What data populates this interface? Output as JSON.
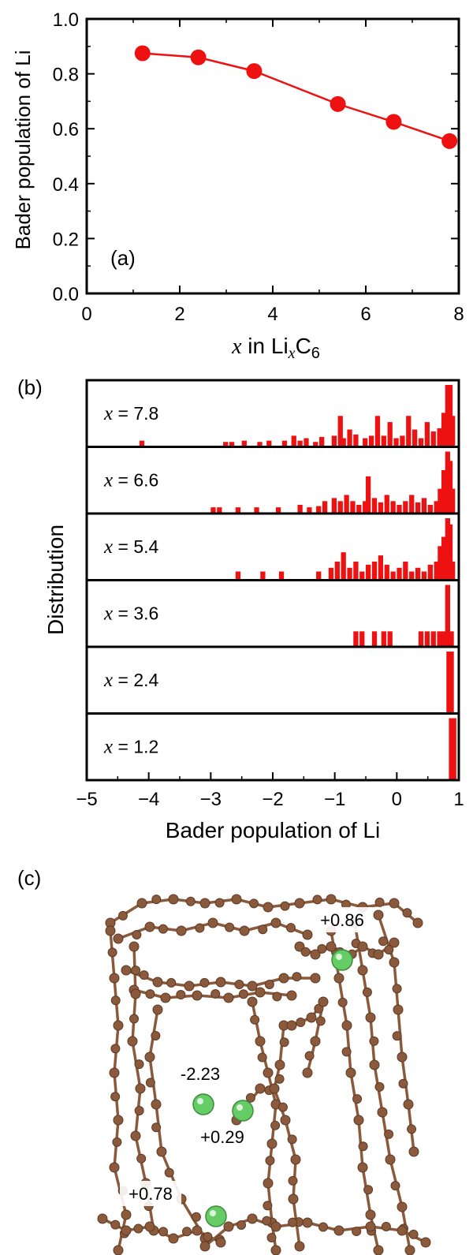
{
  "panels": {
    "a_label": "(a)",
    "b_label": "(b)",
    "c_label": "(c)"
  },
  "chart_data": [
    {
      "type": "line",
      "panel": "(a)",
      "ylabel": "Bader population of Li",
      "xlabel_var": "x",
      "xlabel_mid": " in Li",
      "xlabel_sub_var": "x",
      "xlabel_tail": "C",
      "xlabel_tail_sub": "6",
      "xlim": [
        0,
        8
      ],
      "ylim": [
        0,
        1.0
      ],
      "xticks": [
        "0",
        "2",
        "4",
        "6",
        "8"
      ],
      "yticks": [
        "0.0",
        "0.2",
        "0.4",
        "0.6",
        "0.8",
        "1.0"
      ],
      "x": [
        1.2,
        2.4,
        3.6,
        5.4,
        6.6,
        7.8
      ],
      "y": [
        0.875,
        0.86,
        0.81,
        0.69,
        0.625,
        0.555
      ],
      "color": "#ee1111"
    },
    {
      "type": "bar",
      "panel": "(b)",
      "ylabel": "Distribution",
      "xlabel": "Bader population of Li",
      "xlim": [
        -5,
        1
      ],
      "xticks": [
        "−5",
        "−4",
        "−3",
        "−2",
        "−1",
        "0",
        "1"
      ],
      "color": "#ee1111",
      "series": [
        {
          "label": "x = 7.8",
          "bins": [
            [
              -4.15,
              0.1
            ],
            [
              -2.8,
              0.08
            ],
            [
              -2.7,
              0.08
            ],
            [
              -2.5,
              0.1
            ],
            [
              -2.25,
              0.08
            ],
            [
              -2.1,
              0.1
            ],
            [
              -1.85,
              0.1
            ],
            [
              -1.7,
              0.18
            ],
            [
              -1.6,
              0.1
            ],
            [
              -1.5,
              0.14
            ],
            [
              -1.35,
              0.08
            ],
            [
              -1.25,
              0.16
            ],
            [
              -1.05,
              0.18
            ],
            [
              -0.95,
              0.5
            ],
            [
              -0.9,
              0.14
            ],
            [
              -0.8,
              0.28
            ],
            [
              -0.7,
              0.2
            ],
            [
              -0.55,
              0.14
            ],
            [
              -0.45,
              0.18
            ],
            [
              -0.35,
              0.5
            ],
            [
              -0.25,
              0.18
            ],
            [
              -0.15,
              0.4
            ],
            [
              -0.05,
              0.14
            ],
            [
              0.05,
              0.18
            ],
            [
              0.15,
              0.5
            ],
            [
              0.25,
              0.28
            ],
            [
              0.35,
              0.14
            ],
            [
              0.45,
              0.4
            ],
            [
              0.55,
              0.25
            ],
            [
              0.65,
              0.3
            ],
            [
              0.72,
              0.55
            ],
            [
              0.78,
              1.0
            ],
            [
              0.82,
              1.0
            ],
            [
              0.86,
              0.5
            ]
          ]
        },
        {
          "label": "x = 6.6",
          "bins": [
            [
              -3.0,
              0.1
            ],
            [
              -2.9,
              0.1
            ],
            [
              -2.6,
              0.1
            ],
            [
              -2.3,
              0.1
            ],
            [
              -1.95,
              0.1
            ],
            [
              -1.6,
              0.14
            ],
            [
              -1.45,
              0.1
            ],
            [
              -1.3,
              0.12
            ],
            [
              -1.2,
              0.2
            ],
            [
              -1.05,
              0.25
            ],
            [
              -0.95,
              0.2
            ],
            [
              -0.85,
              0.3
            ],
            [
              -0.75,
              0.2
            ],
            [
              -0.65,
              0.14
            ],
            [
              -0.55,
              0.2
            ],
            [
              -0.5,
              0.6
            ],
            [
              -0.4,
              0.25
            ],
            [
              -0.3,
              0.18
            ],
            [
              -0.2,
              0.3
            ],
            [
              -0.1,
              0.2
            ],
            [
              0.0,
              0.14
            ],
            [
              0.1,
              0.2
            ],
            [
              0.2,
              0.3
            ],
            [
              0.3,
              0.18
            ],
            [
              0.4,
              0.25
            ],
            [
              0.5,
              0.14
            ],
            [
              0.6,
              0.2
            ],
            [
              0.66,
              0.4
            ],
            [
              0.72,
              0.7
            ],
            [
              0.78,
              1.0
            ],
            [
              0.82,
              0.85
            ],
            [
              0.86,
              0.4
            ]
          ]
        },
        {
          "label": "x = 5.4",
          "bins": [
            [
              -2.6,
              0.14
            ],
            [
              -2.2,
              0.14
            ],
            [
              -1.9,
              0.14
            ],
            [
              -1.3,
              0.14
            ],
            [
              -1.1,
              0.2
            ],
            [
              -1.0,
              0.3
            ],
            [
              -0.9,
              0.45
            ],
            [
              -0.8,
              0.2
            ],
            [
              -0.7,
              0.3
            ],
            [
              -0.6,
              0.14
            ],
            [
              -0.5,
              0.25
            ],
            [
              -0.4,
              0.3
            ],
            [
              -0.3,
              0.4
            ],
            [
              -0.2,
              0.25
            ],
            [
              -0.1,
              0.14
            ],
            [
              0.0,
              0.2
            ],
            [
              0.1,
              0.3
            ],
            [
              0.2,
              0.14
            ],
            [
              0.3,
              0.2
            ],
            [
              0.4,
              0.14
            ],
            [
              0.5,
              0.25
            ],
            [
              0.6,
              0.3
            ],
            [
              0.66,
              0.55
            ],
            [
              0.72,
              0.7
            ],
            [
              0.78,
              1.0
            ],
            [
              0.82,
              0.9
            ],
            [
              0.86,
              0.3
            ]
          ]
        },
        {
          "label": "x = 3.6",
          "bins": [
            [
              -0.7,
              0.25
            ],
            [
              -0.6,
              0.25
            ],
            [
              -0.4,
              0.25
            ],
            [
              -0.25,
              0.25
            ],
            [
              -0.15,
              0.25
            ],
            [
              0.35,
              0.25
            ],
            [
              0.45,
              0.25
            ],
            [
              0.55,
              0.25
            ],
            [
              0.65,
              0.25
            ],
            [
              0.72,
              0.25
            ],
            [
              0.78,
              1.0
            ],
            [
              0.84,
              0.25
            ]
          ]
        },
        {
          "label": "x = 2.4",
          "bins": [
            [
              0.8,
              1.0
            ],
            [
              0.84,
              1.0
            ]
          ]
        },
        {
          "label": "x = 1.2",
          "bins": [
            [
              0.84,
              1.0
            ],
            [
              0.88,
              1.0
            ]
          ]
        }
      ]
    }
  ],
  "structure": {
    "annotations": [
      "+0.86",
      "-2.23",
      "+0.29",
      "+0.78"
    ],
    "atom_color": "#8b5a3c",
    "li_color": "#66cc66"
  }
}
